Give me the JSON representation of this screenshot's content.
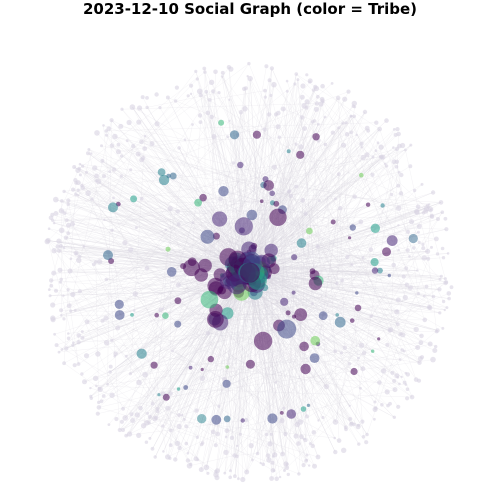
{
  "figure": {
    "title": "2023-12-10 Social Graph (color = Tribe)"
  },
  "style": {
    "background": "#ffffff",
    "edge_color": "#d9d6e0",
    "peripheral_node_color": "#d8d3e3"
  },
  "palette": {
    "tribes": [
      "#440154",
      "#482878",
      "#3e4989",
      "#31688e",
      "#26828e",
      "#1f9e89",
      "#35b779",
      "#6ece58"
    ]
  },
  "chart_data": {
    "type": "network",
    "layout": "radial-core-periphery",
    "color_encoding": "Tribe",
    "node_count_estimate": 900,
    "edge_count_estimate": 1600
  }
}
